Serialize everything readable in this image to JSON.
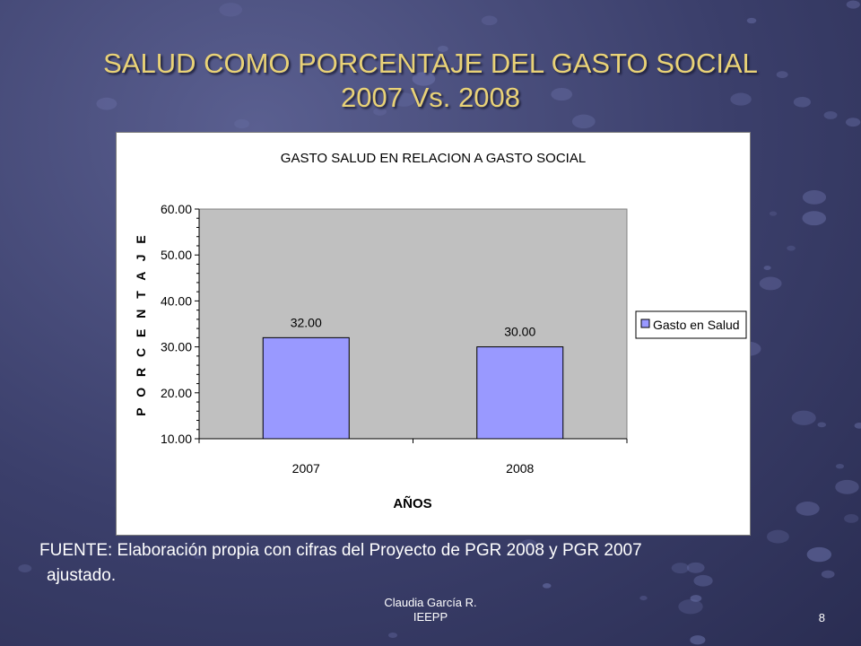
{
  "slide": {
    "title_line1": "SALUD COMO PORCENTAJE DEL GASTO SOCIAL",
    "title_line2": "2007 Vs. 2008",
    "source_line1": "FUENTE: Elaboración propia con cifras del Proyecto de PGR 2008 y PGR 2007",
    "source_line2": "ajustado.",
    "author_line1": "Claudia García R.",
    "author_line2": "IEEPP",
    "page_number": "8"
  },
  "colors": {
    "title": "#e9d277",
    "bar_fill": "#9999ff",
    "plot_area": "#c0c0c0"
  },
  "chart_data": {
    "type": "bar",
    "title": "GASTO SALUD EN RELACION A GASTO SOCIAL",
    "xlabel": "AÑOS",
    "ylabel": "PORCENTAJE",
    "categories": [
      "2007",
      "2008"
    ],
    "series": [
      {
        "name": "Gasto en Salud",
        "values": [
          32.0,
          30.0
        ]
      }
    ],
    "data_labels": [
      "32.00",
      "30.00"
    ],
    "ylim": [
      10,
      60
    ],
    "y_ticks": [
      "10.00",
      "20.00",
      "30.00",
      "40.00",
      "50.00",
      "60.00"
    ],
    "grid": false,
    "legend_position": "right"
  }
}
